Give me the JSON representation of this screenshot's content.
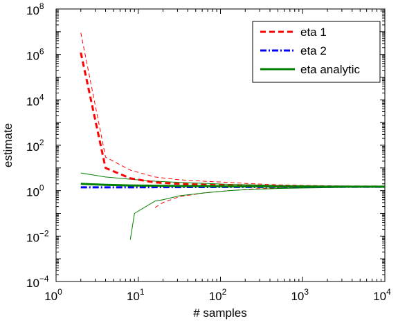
{
  "chart_data": {
    "type": "line",
    "xlabel": "# samples",
    "ylabel": "estimate",
    "xscale": "log",
    "yscale": "log",
    "xlim": [
      1,
      10000
    ],
    "ylim": [
      0.0001,
      100000000
    ],
    "x_ticks": [
      {
        "base": "10",
        "exp": "0"
      },
      {
        "base": "10",
        "exp": "1"
      },
      {
        "base": "10",
        "exp": "2"
      },
      {
        "base": "10",
        "exp": "3"
      },
      {
        "base": "10",
        "exp": "4"
      }
    ],
    "y_ticks": [
      {
        "base": "10",
        "exp": "−4"
      },
      {
        "base": "10",
        "exp": "−2"
      },
      {
        "base": "10",
        "exp": "0"
      },
      {
        "base": "10",
        "exp": "2"
      },
      {
        "base": "10",
        "exp": "4"
      },
      {
        "base": "10",
        "exp": "6"
      },
      {
        "base": "10",
        "exp": "8"
      }
    ],
    "grid": false,
    "legend_position": "top-right",
    "legend": [
      "eta 1",
      "eta 2",
      "eta analytic"
    ],
    "series": [
      {
        "name": "eta 1",
        "role": "mean",
        "color": "#ff0000",
        "style": "dashed",
        "x": [
          2,
          4,
          8,
          16,
          32,
          64,
          128,
          256,
          512,
          1024,
          2048,
          4096,
          10000
        ],
        "y": [
          1200000,
          10,
          3.5,
          2.3,
          2.0,
          1.8,
          1.7,
          1.6,
          1.55,
          1.5,
          1.5,
          1.5,
          1.5
        ]
      },
      {
        "name": "eta 1 (upper)",
        "role": "band",
        "color": "#ff0000",
        "style": "dashed",
        "x": [
          2,
          4,
          8,
          16,
          32,
          64,
          128,
          256,
          512,
          1024,
          2048,
          4096,
          10000
        ],
        "y": [
          9000000,
          30,
          8,
          4,
          3,
          2.6,
          2.3,
          2.0,
          1.8,
          1.7,
          1.65,
          1.6,
          1.55
        ]
      },
      {
        "name": "eta 1 (lower)",
        "role": "band",
        "color": "#ff0000",
        "style": "dashed",
        "x": [
          16,
          20,
          32,
          64,
          128,
          256,
          512,
          1024,
          2048,
          4096,
          10000
        ],
        "y": [
          0.18,
          0.3,
          0.55,
          0.8,
          1.0,
          1.2,
          1.3,
          1.35,
          1.4,
          1.42,
          1.45
        ]
      },
      {
        "name": "eta 2",
        "role": "mean",
        "color": "#0000ff",
        "style": "dashdot",
        "x": [
          2,
          4,
          8,
          16,
          32,
          64,
          128,
          256,
          512,
          1024,
          2048,
          4096,
          10000
        ],
        "y": [
          1.4,
          1.4,
          1.4,
          1.42,
          1.43,
          1.44,
          1.45,
          1.45,
          1.46,
          1.46,
          1.47,
          1.47,
          1.48
        ]
      },
      {
        "name": "eta analytic",
        "role": "mean",
        "color": "#008000",
        "style": "solid",
        "x": [
          2,
          4,
          8,
          16,
          32,
          64,
          128,
          256,
          512,
          1024,
          2048,
          4096,
          10000
        ],
        "y": [
          2.0,
          1.8,
          1.7,
          1.65,
          1.6,
          1.6,
          1.55,
          1.55,
          1.52,
          1.5,
          1.5,
          1.5,
          1.5
        ]
      },
      {
        "name": "eta analytic (upper)",
        "role": "band",
        "color": "#008000",
        "style": "solid",
        "x": [
          2,
          4,
          8,
          16,
          32,
          64,
          128,
          256,
          512,
          1024,
          2048,
          4096,
          10000
        ],
        "y": [
          6,
          4,
          3.2,
          2.6,
          2.3,
          2.1,
          1.9,
          1.8,
          1.7,
          1.65,
          1.6,
          1.57,
          1.55
        ]
      },
      {
        "name": "eta analytic (lower)",
        "role": "band",
        "color": "#008000",
        "style": "solid",
        "x": [
          8,
          9,
          16,
          20,
          32,
          64,
          128,
          256,
          512,
          1024,
          2048,
          4096,
          10000
        ],
        "y": [
          0.007,
          0.1,
          0.35,
          0.4,
          0.6,
          0.8,
          1.0,
          1.15,
          1.25,
          1.3,
          1.35,
          1.4,
          1.42
        ]
      }
    ]
  }
}
